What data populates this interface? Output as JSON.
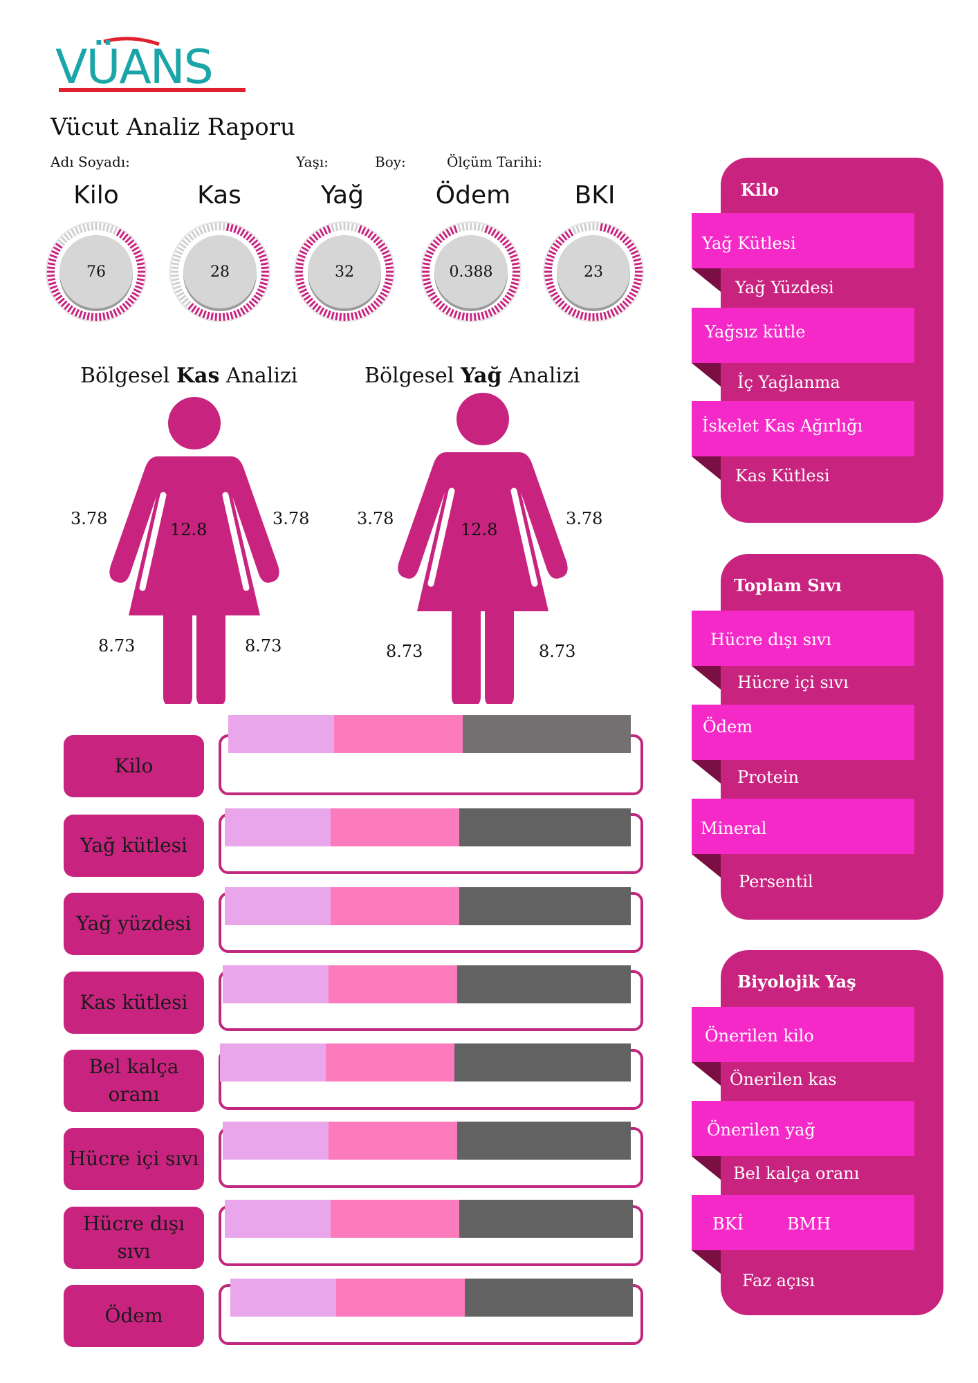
{
  "brand": {
    "logo_text": "VÜANS"
  },
  "report": {
    "title": "Vücut Analiz Raporu",
    "name_label": "Adı Soyadı:",
    "age_label": "Yaşı:",
    "height_label": "Boy:",
    "date_label": "Ölçüm Tarihi:"
  },
  "metrics": [
    {
      "label": "Kilo",
      "value": "76"
    },
    {
      "label": "Kas",
      "value": "28"
    },
    {
      "label": "Yağ",
      "value": "32"
    },
    {
      "label": "Ödem",
      "value": "0.388"
    },
    {
      "label": "BKI",
      "value": "23"
    }
  ],
  "muscle_analysis": {
    "title_pre": "Bölgesel ",
    "title_bold": "Kas",
    "title_post": " Analizi",
    "left_arm": "3.78",
    "trunk": "12.8",
    "right_arm": "3.78",
    "left_leg": "8.73",
    "right_leg": "8.73"
  },
  "fat_analysis": {
    "title_pre": "Bölgesel ",
    "title_bold": "Yağ",
    "title_post": " Analizi",
    "left_arm": "3.78",
    "trunk": "12.8",
    "right_arm": "3.78",
    "left_leg": "8.73",
    "right_leg": "8.73"
  },
  "rows": [
    {
      "label": "Kilo"
    },
    {
      "label": "Yağ kütlesi"
    },
    {
      "label": "Yağ yüzdesi"
    },
    {
      "label": "Kas kütlesi"
    },
    {
      "label": "Bel kalça oranı"
    },
    {
      "label": "Hücre içi sıvı"
    },
    {
      "label": "Hücre dışı sıvı"
    },
    {
      "label": "Ödem"
    }
  ],
  "panels": [
    {
      "title": "Kilo",
      "items": [
        "Yağ Kütlesi",
        "Yağ Yüzdesi",
        "Yağsız kütle",
        "İç Yağlanma",
        "İskelet Kas Ağırlığı",
        "Kas Kütlesi"
      ]
    },
    {
      "title": "Toplam Sıvı",
      "items": [
        "Hücre dışı sıvı",
        "Hücre içi sıvı",
        "Ödem",
        "Protein",
        "Mineral",
        "Persentil"
      ]
    },
    {
      "title": "Biyolojik Yaş",
      "items": [
        "Önerilen kilo",
        "Önerilen kas",
        "Önerilen yağ",
        "Bel kalça oranı",
        "BKİ",
        "BMH",
        "Faz açısı"
      ]
    }
  ],
  "colors": {
    "primary": "#c8247f",
    "ribbon": "#f529c7",
    "bar_light": "#eaa6ea",
    "bar_mid": "#fb7bbd",
    "bar_dark": "#636263",
    "logo_teal": "#1aa5a8",
    "logo_red": "#e0212d"
  }
}
